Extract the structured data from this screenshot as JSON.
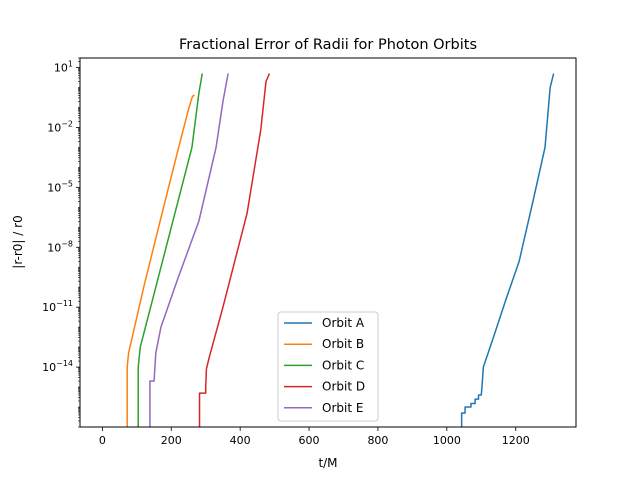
{
  "chart_data": {
    "type": "line",
    "title": "Fractional Error of Radii for Photon Orbits",
    "xlabel": "t/M",
    "ylabel": "|r-r0| / r0",
    "xlim": [
      -65,
      1375
    ],
    "ylim": [
      1e-17,
      30
    ],
    "yscale": "log",
    "grid": false,
    "legend_position": "lower-center",
    "xticks": [
      {
        "value": 0,
        "label": "0"
      },
      {
        "value": 200,
        "label": "200"
      },
      {
        "value": 400,
        "label": "400"
      },
      {
        "value": 600,
        "label": "600"
      },
      {
        "value": 800,
        "label": "800"
      },
      {
        "value": 1000,
        "label": "1000"
      },
      {
        "value": 1200,
        "label": "1200"
      }
    ],
    "yticks": [
      {
        "value": 1e-14,
        "base": "10",
        "exp": "−14"
      },
      {
        "value": 1e-11,
        "base": "10",
        "exp": "−11"
      },
      {
        "value": 1e-08,
        "base": "10",
        "exp": "−8"
      },
      {
        "value": 1e-05,
        "base": "10",
        "exp": "−5"
      },
      {
        "value": 0.01,
        "base": "10",
        "exp": "−2"
      },
      {
        "value": 10,
        "base": "10",
        "exp": "1"
      }
    ],
    "series": [
      {
        "name": "Orbit A",
        "color": "#1f77b4",
        "points": [
          [
            1043,
            1e-17
          ],
          [
            1043,
            5e-17
          ],
          [
            1053,
            5e-17
          ],
          [
            1053,
            1e-16
          ],
          [
            1070,
            1e-16
          ],
          [
            1070,
            1.5e-16
          ],
          [
            1082,
            1.5e-16
          ],
          [
            1082,
            2.5e-16
          ],
          [
            1092,
            2.5e-16
          ],
          [
            1092,
            4e-16
          ],
          [
            1100,
            4e-16
          ],
          [
            1102,
            1e-15
          ],
          [
            1106,
            1e-14
          ],
          [
            1135,
            3e-13
          ],
          [
            1170,
            2e-11
          ],
          [
            1210,
            2e-09
          ],
          [
            1250,
            2e-06
          ],
          [
            1285,
            0.001
          ],
          [
            1300,
            1
          ],
          [
            1310,
            5
          ]
        ]
      },
      {
        "name": "Orbit B",
        "color": "#ff7f0e",
        "points": [
          [
            72,
            1e-17
          ],
          [
            72,
            1e-14
          ],
          [
            76,
            5e-14
          ],
          [
            80,
            1e-13
          ],
          [
            120,
            1e-10
          ],
          [
            170,
            3e-07
          ],
          [
            220,
            0.0008
          ],
          [
            250,
            0.08
          ],
          [
            260,
            0.3
          ],
          [
            264,
            0.4
          ],
          [
            268,
            0.4
          ]
        ]
      },
      {
        "name": "Orbit C",
        "color": "#2ca02c",
        "points": [
          [
            104,
            1e-17
          ],
          [
            104,
            1e-14
          ],
          [
            110,
            1e-13
          ],
          [
            140,
            1e-11
          ],
          [
            200,
            1e-07
          ],
          [
            260,
            0.001
          ],
          [
            280,
            0.5
          ],
          [
            290,
            5
          ]
        ]
      },
      {
        "name": "Orbit D",
        "color": "#d62728",
        "points": [
          [
            282,
            1e-17
          ],
          [
            282,
            5e-16
          ],
          [
            300,
            5e-16
          ],
          [
            300,
            1e-15
          ],
          [
            302,
            8e-15
          ],
          [
            310,
            3e-14
          ],
          [
            350,
            1e-11
          ],
          [
            420,
            5e-07
          ],
          [
            460,
            0.008
          ],
          [
            475,
            2
          ],
          [
            485,
            5
          ]
        ]
      },
      {
        "name": "Orbit E",
        "color": "#9467bd",
        "points": [
          [
            138,
            1e-17
          ],
          [
            138,
            2e-15
          ],
          [
            150,
            2e-15
          ],
          [
            155,
            5e-14
          ],
          [
            170,
            1e-12
          ],
          [
            220,
            3e-10
          ],
          [
            280,
            2e-07
          ],
          [
            330,
            0.001
          ],
          [
            350,
            0.2
          ],
          [
            365,
            5
          ]
        ]
      }
    ]
  }
}
